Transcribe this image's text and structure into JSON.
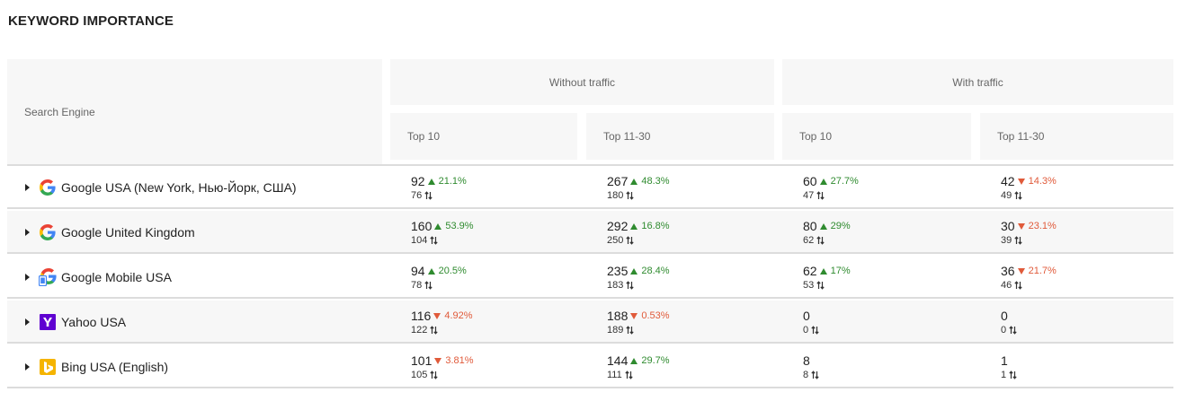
{
  "title": "KEYWORD IMPORTANCE",
  "header": {
    "engine": "Search Engine",
    "without_traffic": "Without traffic",
    "with_traffic": "With traffic",
    "sub": [
      "Top 10",
      "Top 11-30",
      "Top 10",
      "Top 11-30"
    ]
  },
  "colors": {
    "up": "#2f8b2f",
    "down": "#e05a3a"
  },
  "rows": [
    {
      "engine": "Google USA (New York, Нью-Йорк, США)",
      "icon": "google-icon",
      "cells": [
        {
          "value": "92",
          "change": "21.1%",
          "dir": "up",
          "sub": "76"
        },
        {
          "value": "267",
          "change": "48.3%",
          "dir": "up",
          "sub": "180"
        },
        {
          "value": "60",
          "change": "27.7%",
          "dir": "up",
          "sub": "47"
        },
        {
          "value": "42",
          "change": "14.3%",
          "dir": "down",
          "sub": "49"
        }
      ]
    },
    {
      "engine": "Google United Kingdom",
      "icon": "google-icon",
      "cells": [
        {
          "value": "160",
          "change": "53.9%",
          "dir": "up",
          "sub": "104"
        },
        {
          "value": "292",
          "change": "16.8%",
          "dir": "up",
          "sub": "250"
        },
        {
          "value": "80",
          "change": "29%",
          "dir": "up",
          "sub": "62"
        },
        {
          "value": "30",
          "change": "23.1%",
          "dir": "down",
          "sub": "39"
        }
      ]
    },
    {
      "engine": "Google Mobile USA",
      "icon": "google-mobile-icon",
      "cells": [
        {
          "value": "94",
          "change": "20.5%",
          "dir": "up",
          "sub": "78"
        },
        {
          "value": "235",
          "change": "28.4%",
          "dir": "up",
          "sub": "183"
        },
        {
          "value": "62",
          "change": "17%",
          "dir": "up",
          "sub": "53"
        },
        {
          "value": "36",
          "change": "21.7%",
          "dir": "down",
          "sub": "46"
        }
      ]
    },
    {
      "engine": "Yahoo USA",
      "icon": "yahoo-icon",
      "cells": [
        {
          "value": "116",
          "change": "4.92%",
          "dir": "down",
          "sub": "122"
        },
        {
          "value": "188",
          "change": "0.53%",
          "dir": "down",
          "sub": "189"
        },
        {
          "value": "0",
          "change": "",
          "dir": "",
          "sub": "0"
        },
        {
          "value": "0",
          "change": "",
          "dir": "",
          "sub": "0"
        }
      ]
    },
    {
      "engine": "Bing USA (English)",
      "icon": "bing-icon",
      "cells": [
        {
          "value": "101",
          "change": "3.81%",
          "dir": "down",
          "sub": "105"
        },
        {
          "value": "144",
          "change": "29.7%",
          "dir": "up",
          "sub": "111"
        },
        {
          "value": "8",
          "change": "",
          "dir": "",
          "sub": "8"
        },
        {
          "value": "1",
          "change": "",
          "dir": "",
          "sub": "1"
        }
      ]
    }
  ]
}
